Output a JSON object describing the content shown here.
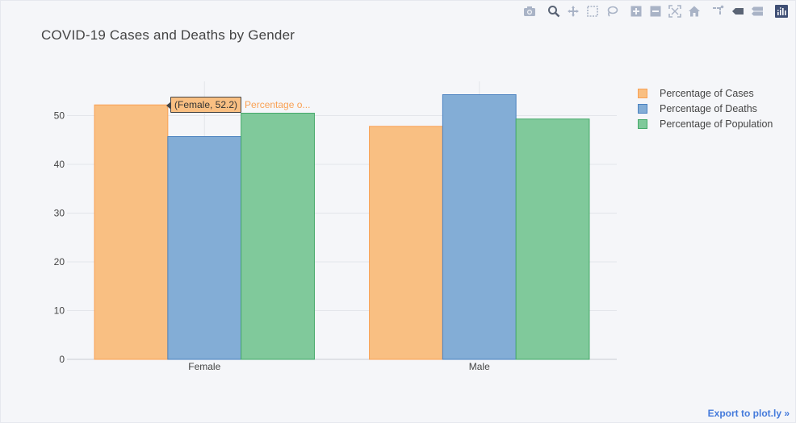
{
  "toolbar": {
    "icons": [
      "camera-icon",
      "zoom-icon",
      "pan-icon",
      "box-select-icon",
      "lasso-icon",
      "zoom-in-icon",
      "zoom-out-icon",
      "autoscale-icon",
      "reset-axes-icon",
      "spike-lines-icon",
      "hover-closest-icon",
      "hover-compare-icon",
      "plotly-logo-icon"
    ],
    "icon_color": "#a9b3c6",
    "active_icon_color": "#7a8599"
  },
  "export_label": "Export to plot.ly »",
  "hover": {
    "text": "(Female, 52.2)",
    "series_name": "Percentage o..."
  },
  "chart_data": {
    "type": "bar",
    "title": "COVID-19 Cases and Deaths by Gender",
    "xlabel": "",
    "ylabel": "",
    "categories": [
      "Female",
      "Male"
    ],
    "series": [
      {
        "name": "Percentage of Cases",
        "values": [
          52.2,
          47.8
        ],
        "color": "#f9bf82",
        "line": "#f9a155"
      },
      {
        "name": "Percentage of Deaths",
        "values": [
          45.7,
          54.3
        ],
        "color": "#83add6",
        "line": "#4b82c0"
      },
      {
        "name": "Percentage of Population",
        "values": [
          50.5,
          49.3
        ],
        "color": "#80c99b",
        "line": "#45a96a"
      }
    ],
    "ylim": [
      0,
      58
    ],
    "yticks": [
      0,
      10,
      20,
      30,
      40,
      50
    ],
    "grid": true,
    "legend_position": "top-right"
  }
}
